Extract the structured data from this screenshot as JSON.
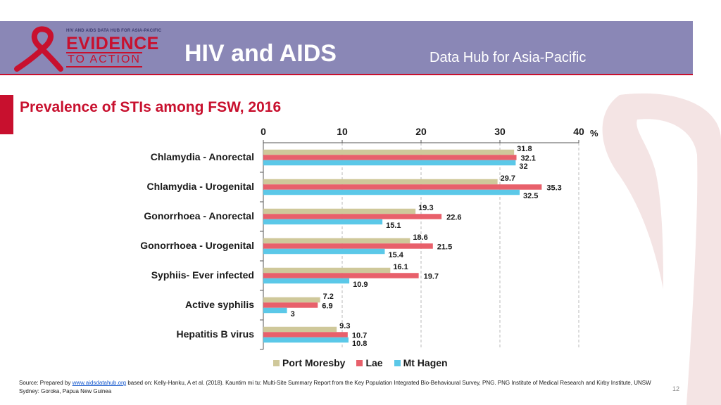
{
  "header": {
    "logo_small": "HIV AND AIDS DATA HUB FOR ASIA-PACIFIC",
    "logo_line1": "EVIDENCE",
    "logo_line2": "TO ACTION",
    "title": "HIV and AIDS",
    "subtitle": "Data Hub for Asia-Pacific"
  },
  "colors": {
    "header": "#8a87b6",
    "accent": "#c8102e",
    "port_moresby": "#cfc89a",
    "lae": "#e8606b",
    "mt_hagen": "#5bc8e8"
  },
  "chart_data": {
    "type": "bar",
    "orientation": "horizontal",
    "title": "Prevalence of STIs among FSW, 2016",
    "unit_label": "%",
    "categories": [
      "Chlamydia - Anorectal",
      "Chlamydia - Urogenital",
      "Gonorrhoea - Anorectal",
      "Gonorrhoea - Urogenital",
      "Syphiis- Ever infected",
      "Active syphilis",
      "Hepatitis B virus"
    ],
    "series": [
      {
        "name": "Port Moresby",
        "values": [
          31.8,
          29.7,
          19.3,
          18.6,
          16.1,
          7.2,
          9.3
        ],
        "labels": [
          "31.8",
          "29.7",
          "19.3",
          "18.6",
          "16.1",
          "7.2",
          "9.3"
        ]
      },
      {
        "name": "Lae",
        "values": [
          32.1,
          35.3,
          22.6,
          21.5,
          19.7,
          6.9,
          10.7
        ],
        "labels": [
          "32.1",
          "35.3",
          "22.6",
          "21.5",
          "19.7",
          "6.9",
          "10.7"
        ]
      },
      {
        "name": "Mt Hagen",
        "values": [
          32,
          32.5,
          15.1,
          15.4,
          10.9,
          3,
          10.8
        ],
        "labels": [
          "32",
          "32.5",
          "15.1",
          "15.4",
          "10.9",
          "3",
          "10.8"
        ]
      }
    ],
    "xlim": [
      0,
      40
    ],
    "xticks": [
      "0",
      "10",
      "20",
      "30",
      "40"
    ],
    "grid": "vertical dashed",
    "legend_position": "bottom"
  },
  "footer": {
    "source_prefix": "Source: Prepared by ",
    "source_link": "www.aidsdatahub.org",
    "source_rest": " based on: Kelly-Hanku, A et al. (2018). Kauntim mi tu: Multi-Site Summary Report from the Key Population Integrated Bio-Behavioural Survey, PNG. PNG Institute of Medical Research and Kirby Institute, UNSW Sydney: Goroka, Papua New Guinea",
    "page_number": "12"
  }
}
